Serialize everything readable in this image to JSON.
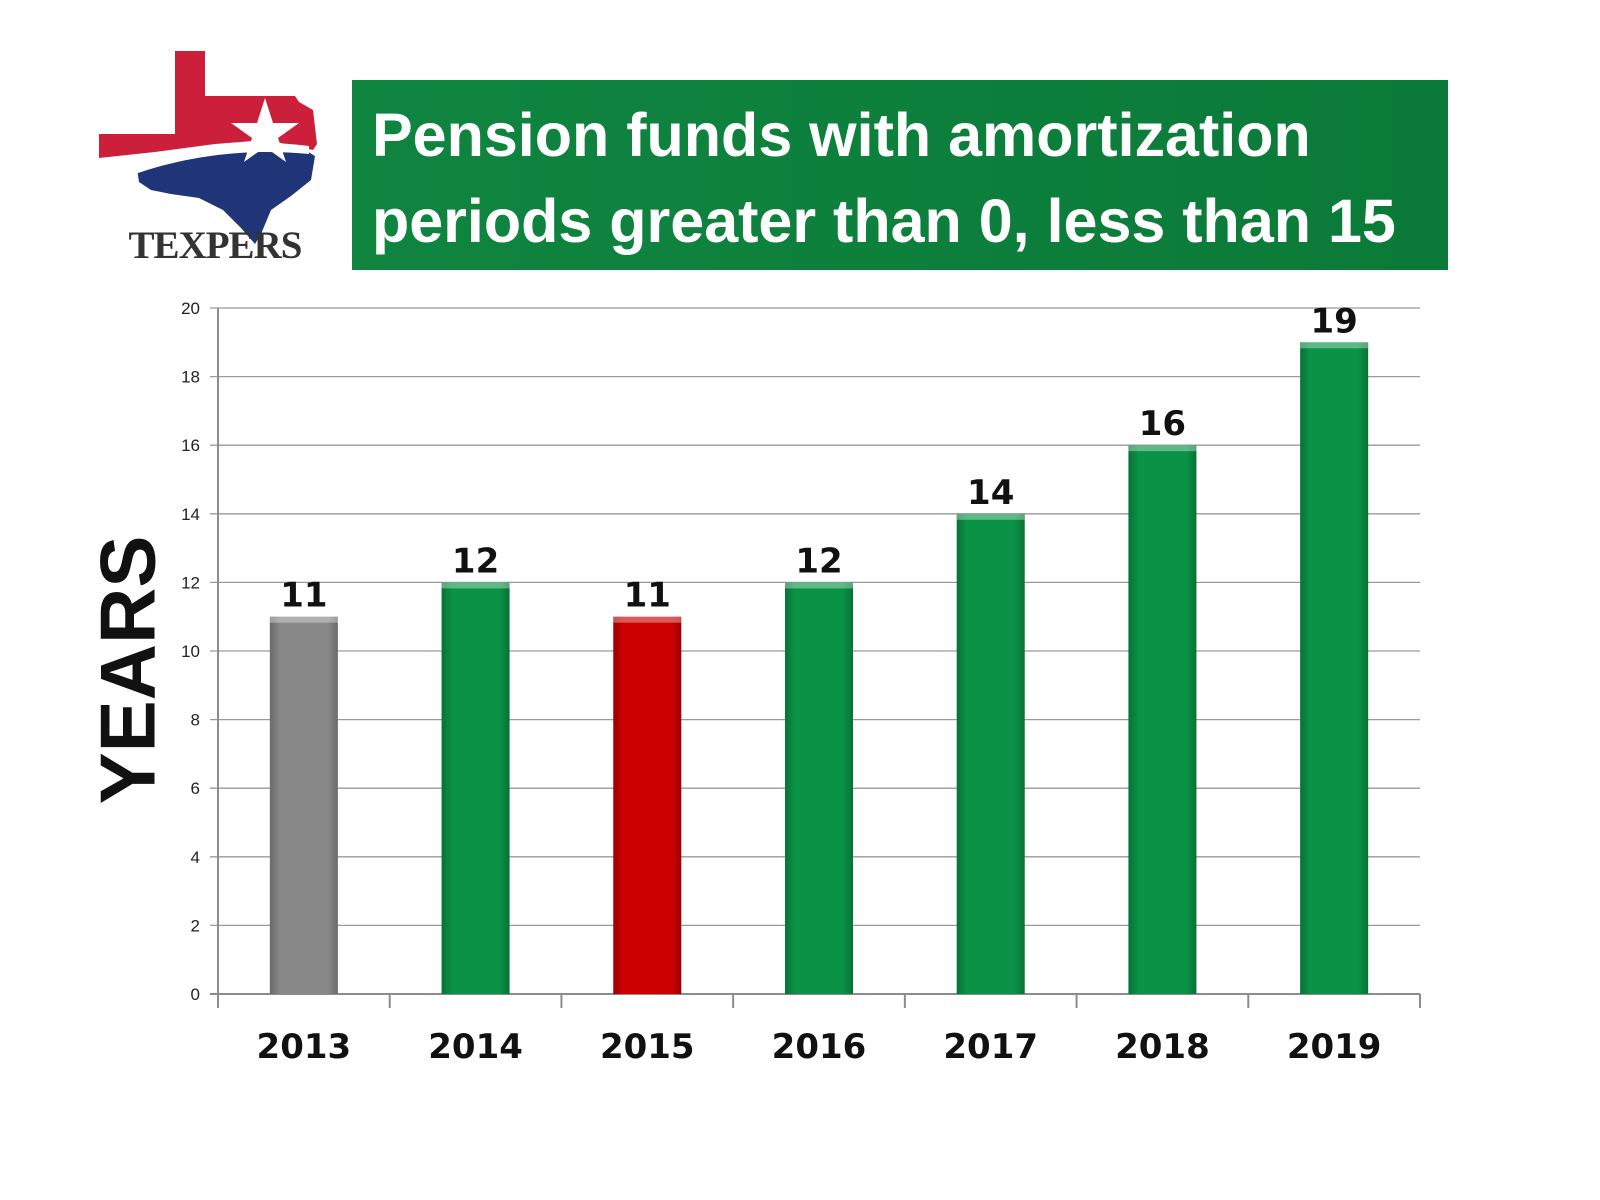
{
  "logo": {
    "text": "TEXPERS",
    "icon": "texas-map-star-icon"
  },
  "title_lines": [
    "Pension funds with amortization",
    "periods greater than 0, less than 15"
  ],
  "colors": {
    "title_bg": "#0f8540",
    "bar_green": "#0a9246",
    "bar_gray": "#888888",
    "bar_red": "#cc0000",
    "logo_red": "#cc1f3b",
    "logo_blue": "#1f3577"
  },
  "chart_data": {
    "type": "bar",
    "categories": [
      "2013",
      "2014",
      "2015",
      "2016",
      "2017",
      "2018",
      "2019"
    ],
    "values": [
      11,
      12,
      11,
      12,
      14,
      16,
      19
    ],
    "bar_colors": [
      "#888888",
      "#0a9246",
      "#cc0000",
      "#0a9246",
      "#0a9246",
      "#0a9246",
      "#0a9246"
    ],
    "data_labels": [
      "11",
      "12",
      "11",
      "12",
      "14",
      "16",
      "19"
    ],
    "ylabel": "YEARS",
    "xlabel": "",
    "ylim": [
      0,
      20
    ],
    "yticks": [
      0,
      2,
      4,
      6,
      8,
      10,
      12,
      14,
      16,
      18,
      20
    ],
    "grid": true,
    "legend": "none"
  }
}
